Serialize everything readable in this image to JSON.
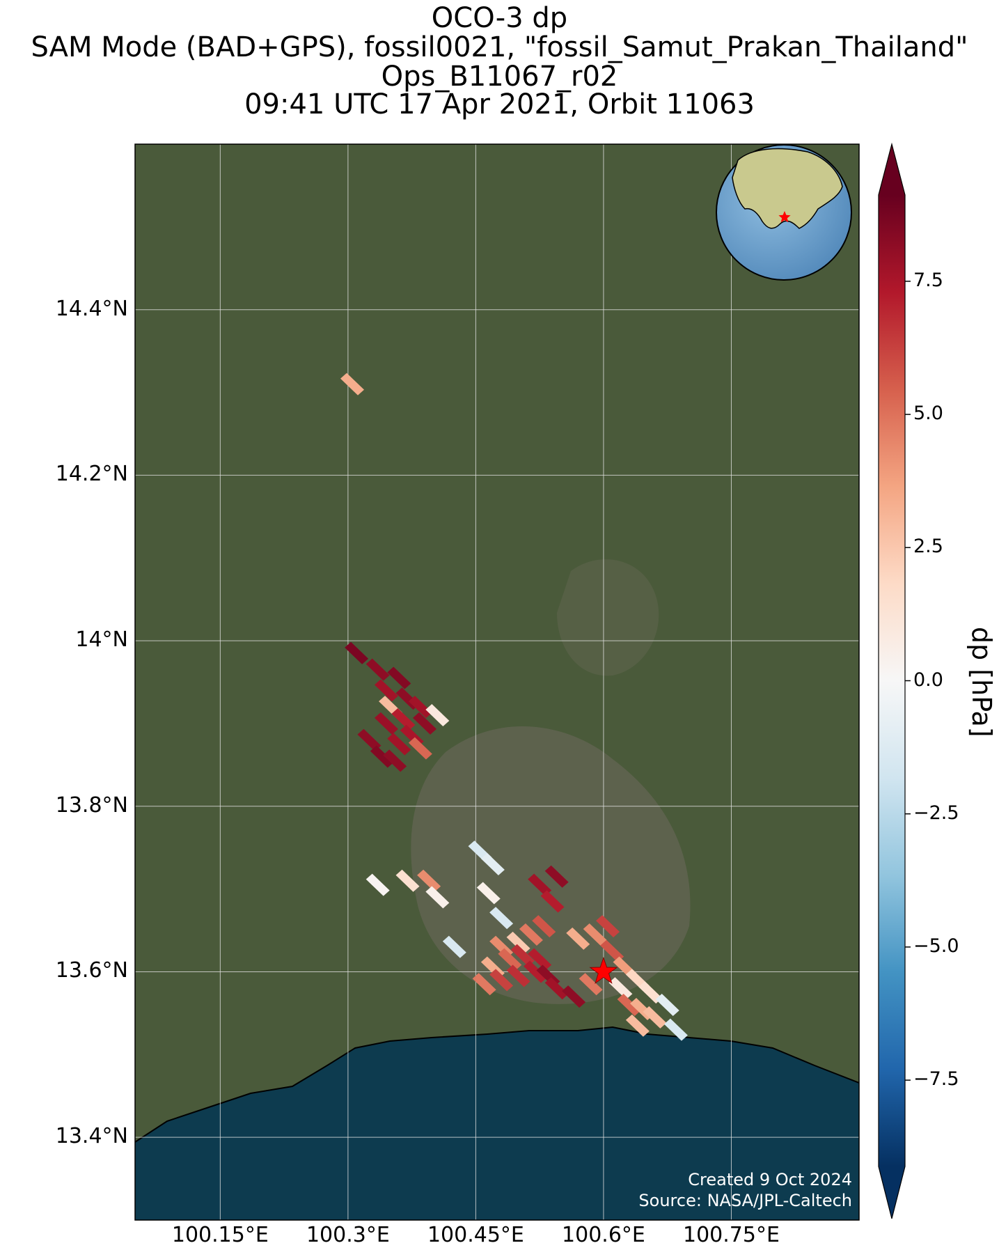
{
  "title_lines": [
    "OCO-3 dp",
    "SAM Mode (BAD+GPS), fossil0021, \"fossil_Samut_Prakan_Thailand\"",
    "Ops_B11067_r02",
    "09:41 UTC 17 Apr 2021, Orbit 11063"
  ],
  "map": {
    "lon_range": [
      100.05,
      100.9
    ],
    "lat_range": [
      13.3,
      14.6
    ],
    "lat_ticks": [
      {
        "value": 14.4,
        "label": "14.4°N"
      },
      {
        "value": 14.2,
        "label": "14.2°N"
      },
      {
        "value": 14.0,
        "label": "14°N"
      },
      {
        "value": 13.8,
        "label": "13.8°N"
      },
      {
        "value": 13.6,
        "label": "13.6°N"
      },
      {
        "value": 13.4,
        "label": "13.4°N"
      }
    ],
    "lon_ticks": [
      {
        "value": 100.15,
        "label": "100.15°E"
      },
      {
        "value": 100.3,
        "label": "100.3°E"
      },
      {
        "value": 100.45,
        "label": "100.45°E"
      },
      {
        "value": 100.6,
        "label": "100.6°E"
      },
      {
        "value": 100.75,
        "label": "100.75°E"
      }
    ],
    "grid": true,
    "target": {
      "name": "fossil_Samut_Prakan_Thailand",
      "lon": 100.6,
      "lat": 13.6,
      "marker": "red-star"
    },
    "base_colors": {
      "land": "#4a5a3a",
      "sea": "#0d3b4f",
      "coast": "#000000"
    }
  },
  "soundings": [
    {
      "lon": 100.305,
      "lat": 14.31,
      "dp": 3.5
    },
    {
      "lon": 100.31,
      "lat": 13.985,
      "dp": 9.0
    },
    {
      "lon": 100.335,
      "lat": 13.965,
      "dp": 8.5
    },
    {
      "lon": 100.345,
      "lat": 13.94,
      "dp": 8.0
    },
    {
      "lon": 100.36,
      "lat": 13.955,
      "dp": 8.8
    },
    {
      "lon": 100.35,
      "lat": 13.92,
      "dp": 3.0
    },
    {
      "lon": 100.37,
      "lat": 13.93,
      "dp": 8.5
    },
    {
      "lon": 100.385,
      "lat": 13.92,
      "dp": 8.0
    },
    {
      "lon": 100.345,
      "lat": 13.9,
      "dp": 8.2
    },
    {
      "lon": 100.365,
      "lat": 13.905,
      "dp": 7.5
    },
    {
      "lon": 100.39,
      "lat": 13.9,
      "dp": 8.5
    },
    {
      "lon": 100.405,
      "lat": 13.91,
      "dp": 1.0
    },
    {
      "lon": 100.325,
      "lat": 13.88,
      "dp": 8.5
    },
    {
      "lon": 100.34,
      "lat": 13.86,
      "dp": 8.8
    },
    {
      "lon": 100.36,
      "lat": 13.875,
      "dp": 8.0
    },
    {
      "lon": 100.375,
      "lat": 13.885,
      "dp": 7.8
    },
    {
      "lon": 100.385,
      "lat": 13.87,
      "dp": 5.5
    },
    {
      "lon": 100.355,
      "lat": 13.855,
      "dp": 8.5
    },
    {
      "lon": 100.335,
      "lat": 13.705,
      "dp": 0.2
    },
    {
      "lon": 100.37,
      "lat": 13.71,
      "dp": 1.5
    },
    {
      "lon": 100.395,
      "lat": 13.71,
      "dp": 4.5
    },
    {
      "lon": 100.405,
      "lat": 13.69,
      "dp": 0.5
    },
    {
      "lon": 100.425,
      "lat": 13.63,
      "dp": -1.5
    },
    {
      "lon": 100.455,
      "lat": 13.745,
      "dp": -1.5
    },
    {
      "lon": 100.47,
      "lat": 13.73,
      "dp": -1.0
    },
    {
      "lon": 100.465,
      "lat": 13.695,
      "dp": 0.5
    },
    {
      "lon": 100.525,
      "lat": 13.705,
      "dp": 8.0
    },
    {
      "lon": 100.545,
      "lat": 13.715,
      "dp": 8.5
    },
    {
      "lon": 100.54,
      "lat": 13.685,
      "dp": 7.5
    },
    {
      "lon": 100.48,
      "lat": 13.665,
      "dp": -1.5
    },
    {
      "lon": 100.48,
      "lat": 13.63,
      "dp": 4.5
    },
    {
      "lon": 100.5,
      "lat": 13.635,
      "dp": 2.5
    },
    {
      "lon": 100.515,
      "lat": 13.645,
      "dp": 5.0
    },
    {
      "lon": 100.53,
      "lat": 13.655,
      "dp": 6.0
    },
    {
      "lon": 100.47,
      "lat": 13.605,
      "dp": 3.5
    },
    {
      "lon": 100.49,
      "lat": 13.615,
      "dp": 5.5
    },
    {
      "lon": 100.505,
      "lat": 13.62,
      "dp": 7.0
    },
    {
      "lon": 100.525,
      "lat": 13.615,
      "dp": 7.5
    },
    {
      "lon": 100.46,
      "lat": 13.585,
      "dp": 5.0
    },
    {
      "lon": 100.48,
      "lat": 13.59,
      "dp": 6.5
    },
    {
      "lon": 100.5,
      "lat": 13.595,
      "dp": 7.0
    },
    {
      "lon": 100.52,
      "lat": 13.6,
      "dp": 7.5
    },
    {
      "lon": 100.535,
      "lat": 13.595,
      "dp": 8.5
    },
    {
      "lon": 100.545,
      "lat": 13.58,
      "dp": 8.0
    },
    {
      "lon": 100.565,
      "lat": 13.57,
      "dp": 8.5
    },
    {
      "lon": 100.585,
      "lat": 13.585,
      "dp": 5.0
    },
    {
      "lon": 100.57,
      "lat": 13.64,
      "dp": 3.5
    },
    {
      "lon": 100.59,
      "lat": 13.645,
      "dp": 4.5
    },
    {
      "lon": 100.605,
      "lat": 13.655,
      "dp": 6.5
    },
    {
      "lon": 100.61,
      "lat": 13.625,
      "dp": 6.0
    },
    {
      "lon": 100.625,
      "lat": 13.605,
      "dp": 4.0
    },
    {
      "lon": 100.64,
      "lat": 13.59,
      "dp": 2.0
    },
    {
      "lon": 100.655,
      "lat": 13.575,
      "dp": 1.5
    },
    {
      "lon": 100.62,
      "lat": 13.58,
      "dp": 1.0
    },
    {
      "lon": 100.63,
      "lat": 13.56,
      "dp": 5.5
    },
    {
      "lon": 100.645,
      "lat": 13.555,
      "dp": 3.5
    },
    {
      "lon": 100.66,
      "lat": 13.545,
      "dp": 3.0
    },
    {
      "lon": 100.675,
      "lat": 13.56,
      "dp": -1.0
    },
    {
      "lon": 100.685,
      "lat": 13.53,
      "dp": -1.5
    },
    {
      "lon": 100.64,
      "lat": 13.535,
      "dp": 3.0
    }
  ],
  "colorbar": {
    "label": "dp [hPa]",
    "range": [
      -9.5,
      9.5
    ],
    "ticks": [
      {
        "value": 7.5,
        "label": "7.5"
      },
      {
        "value": 5.0,
        "label": "5.0"
      },
      {
        "value": 2.5,
        "label": "2.5"
      },
      {
        "value": 0.0,
        "label": "0.0"
      },
      {
        "value": -2.5,
        "label": "−2.5"
      },
      {
        "value": -5.0,
        "label": "−5.0"
      },
      {
        "value": -7.5,
        "label": "−7.5"
      }
    ],
    "colormap": "RdBu_r",
    "extend": "both"
  },
  "credit": {
    "created": "Created 9 Oct 2024",
    "source": "Source: NASA/JPL-Caltech"
  },
  "inset_globe": {
    "land": "#c9c98e",
    "ocean": "#6b9fc9",
    "marker": "red-star"
  }
}
